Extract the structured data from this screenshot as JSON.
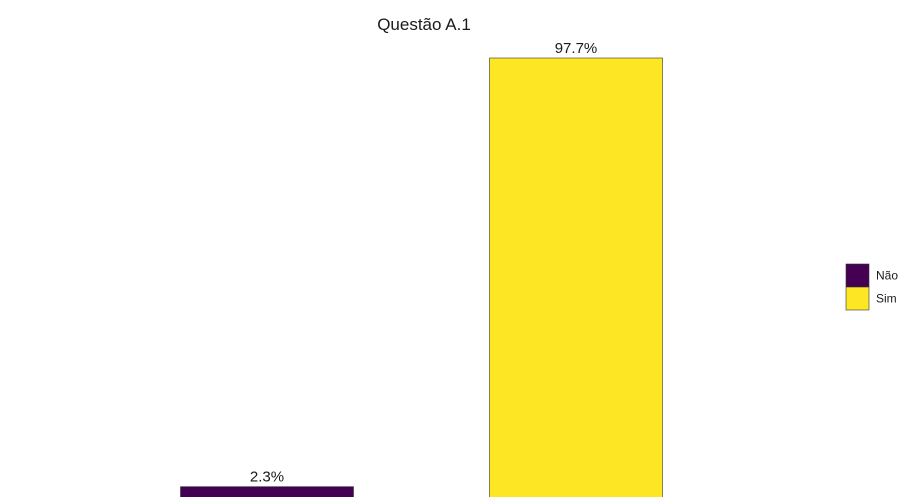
{
  "chart_data": {
    "type": "bar",
    "title": "Questão A.1",
    "xlabel": "",
    "ylabel": "",
    "categories": [
      "Não",
      "Sim"
    ],
    "values": [
      2.3,
      97.7
    ],
    "data_labels": [
      "2.3%",
      "97.7%"
    ],
    "colors": [
      "#440154",
      "#FDE725"
    ],
    "ylim": [
      0,
      100
    ],
    "grid": false,
    "legend": {
      "position": "right",
      "entries": [
        {
          "label": "Não",
          "color": "#440154"
        },
        {
          "label": "Sim",
          "color": "#FDE725"
        }
      ]
    }
  }
}
